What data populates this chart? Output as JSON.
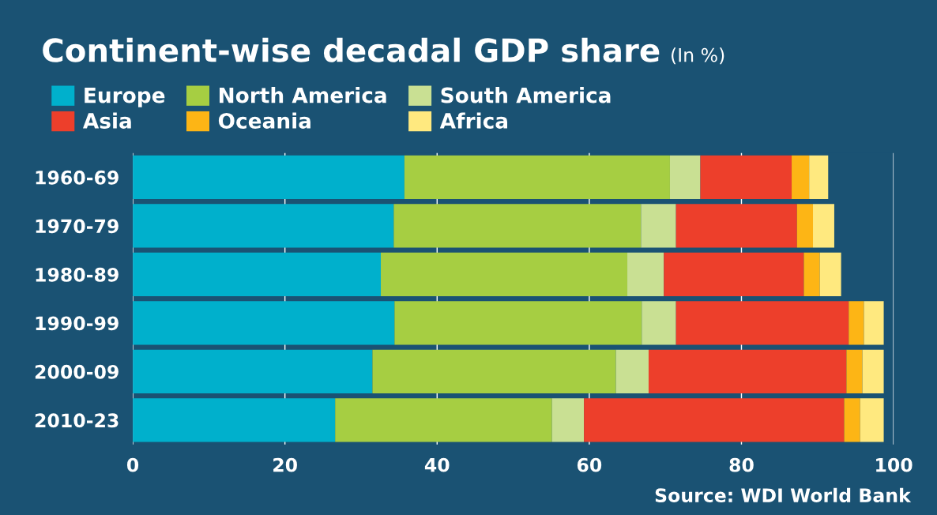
{
  "chart_data": {
    "type": "bar",
    "orientation": "horizontal",
    "stacked": true,
    "title": "Continent-wise decadal GDP share",
    "subtitle": "(In %)",
    "categories": [
      "1960-69",
      "1970-79",
      "1980-89",
      "1990-99",
      "2000-09",
      "2010-23"
    ],
    "series": [
      {
        "name": "Europe",
        "color": "#00b0cc",
        "values": [
          35.7,
          34.3,
          32.6,
          34.4,
          31.5,
          26.6
        ]
      },
      {
        "name": "North America",
        "color": "#a6ce42",
        "values": [
          34.9,
          32.5,
          32.4,
          32.5,
          32.0,
          28.5
        ]
      },
      {
        "name": "South America",
        "color": "#c9e093",
        "values": [
          4.0,
          4.6,
          4.8,
          4.5,
          4.3,
          4.2
        ]
      },
      {
        "name": "Asia",
        "color": "#ed3f2b",
        "values": [
          12.0,
          15.9,
          18.4,
          22.7,
          26.0,
          34.2
        ]
      },
      {
        "name": "Oceania",
        "color": "#fdb515",
        "values": [
          2.3,
          2.1,
          2.1,
          2.0,
          2.1,
          2.1
        ]
      },
      {
        "name": "Africa",
        "color": "#ffe97f",
        "values": [
          2.5,
          2.8,
          2.8,
          2.6,
          2.8,
          3.1
        ]
      }
    ],
    "xlim": [
      0,
      100
    ],
    "xticks": [
      0,
      20,
      40,
      60,
      80,
      100
    ],
    "grid": "x",
    "legend": "top left",
    "annotations": [
      "Source: WDI World Bank"
    ]
  }
}
